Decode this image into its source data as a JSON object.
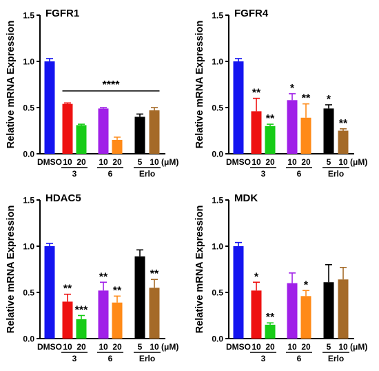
{
  "chart_data": [
    {
      "type": "bar",
      "title": "FGFR1",
      "ylabel": "Relative mRNA Expression",
      "ylim": [
        0,
        1.5
      ],
      "yticks": [
        "0.0",
        "0.5",
        "1.0",
        "1.5"
      ],
      "categories": [
        "DMSO",
        "10",
        "20",
        "10",
        "20",
        "5",
        "10"
      ],
      "groups": [
        {
          "label": "3",
          "from": 1,
          "to": 2
        },
        {
          "label": "6",
          "from": 3,
          "to": 4
        },
        {
          "label": "Erlo",
          "from": 5,
          "to": 6
        }
      ],
      "unit": "(μM)",
      "values": [
        1.0,
        0.54,
        0.31,
        0.49,
        0.15,
        0.4,
        0.47
      ],
      "errors": [
        0.03,
        0.01,
        0.01,
        0.01,
        0.03,
        0.03,
        0.03
      ],
      "stars": [
        "",
        "",
        "",
        "",
        "",
        "",
        ""
      ],
      "bracket": {
        "label": "****",
        "from": 1,
        "to": 6,
        "y": 0.68
      },
      "colors": [
        "#1414f0",
        "#ee1111",
        "#17cc17",
        "#a020e8",
        "#ff8a17",
        "#000000",
        "#a56a28"
      ]
    },
    {
      "type": "bar",
      "title": "FGFR4",
      "ylabel": "Relative mRNA Expression",
      "ylim": [
        0,
        1.5
      ],
      "yticks": [
        "0.0",
        "0.5",
        "1.0",
        "1.5"
      ],
      "categories": [
        "DMSO",
        "10",
        "20",
        "10",
        "20",
        "5",
        "10"
      ],
      "groups": [
        {
          "label": "3",
          "from": 1,
          "to": 2
        },
        {
          "label": "6",
          "from": 3,
          "to": 4
        },
        {
          "label": "Erlo",
          "from": 5,
          "to": 6
        }
      ],
      "unit": "(μM)",
      "values": [
        1.0,
        0.46,
        0.3,
        0.58,
        0.39,
        0.49,
        0.25
      ],
      "errors": [
        0.03,
        0.14,
        0.02,
        0.07,
        0.15,
        0.04,
        0.02
      ],
      "stars": [
        "",
        "**",
        "**",
        "*",
        "**",
        "*",
        "**"
      ],
      "bracket": null,
      "colors": [
        "#1414f0",
        "#ee1111",
        "#17cc17",
        "#a020e8",
        "#ff8a17",
        "#000000",
        "#a56a28"
      ]
    },
    {
      "type": "bar",
      "title": "HDAC5",
      "ylabel": "Relative mRNA Expression",
      "ylim": [
        0,
        1.5
      ],
      "yticks": [
        "0.0",
        "0.5",
        "1.0",
        "1.5"
      ],
      "categories": [
        "DMSO",
        "10",
        "20",
        "10",
        "20",
        "5",
        "10"
      ],
      "groups": [
        {
          "label": "3",
          "from": 1,
          "to": 2
        },
        {
          "label": "6",
          "from": 3,
          "to": 4
        },
        {
          "label": "Erlo",
          "from": 5,
          "to": 6
        }
      ],
      "unit": "(μM)",
      "values": [
        1.0,
        0.4,
        0.21,
        0.52,
        0.39,
        0.89,
        0.55
      ],
      "errors": [
        0.03,
        0.08,
        0.04,
        0.09,
        0.07,
        0.07,
        0.09
      ],
      "stars": [
        "",
        "**",
        "***",
        "**",
        "**",
        "",
        "**"
      ],
      "bracket": null,
      "colors": [
        "#1414f0",
        "#ee1111",
        "#17cc17",
        "#a020e8",
        "#ff8a17",
        "#000000",
        "#a56a28"
      ]
    },
    {
      "type": "bar",
      "title": "MDK",
      "ylabel": "Relative mRNA Expression",
      "ylim": [
        0,
        1.5
      ],
      "yticks": [
        "0.0",
        "0.5",
        "1.0",
        "1.5"
      ],
      "categories": [
        "DMSO",
        "10",
        "20",
        "10",
        "20",
        "5",
        "10"
      ],
      "groups": [
        {
          "label": "3",
          "from": 1,
          "to": 2
        },
        {
          "label": "6",
          "from": 3,
          "to": 4
        },
        {
          "label": "Erlo",
          "from": 5,
          "to": 6
        }
      ],
      "unit": "(μM)",
      "values": [
        1.0,
        0.52,
        0.15,
        0.6,
        0.46,
        0.61,
        0.64
      ],
      "errors": [
        0.04,
        0.09,
        0.02,
        0.11,
        0.06,
        0.19,
        0.13
      ],
      "stars": [
        "",
        "*",
        "**",
        "",
        "*",
        "",
        ""
      ],
      "bracket": null,
      "colors": [
        "#1414f0",
        "#ee1111",
        "#17cc17",
        "#a020e8",
        "#ff8a17",
        "#000000",
        "#a56a28"
      ]
    }
  ]
}
